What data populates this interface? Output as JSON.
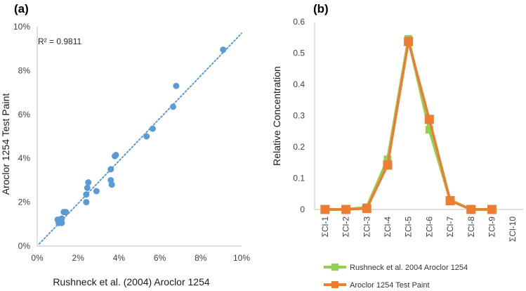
{
  "chart_data": [
    {
      "type": "scatter",
      "panel_label": "(a)",
      "xlabel": "Rushneck et al. (2004) Aroclor 1254",
      "ylabel": "Aroclor 1254 Test Paint",
      "xlim": [
        0,
        10
      ],
      "ylim": [
        0,
        10
      ],
      "x_ticks": [
        "0%",
        "2%",
        "4%",
        "6%",
        "8%",
        "10%"
      ],
      "y_ticks": [
        "0%",
        "2%",
        "4%",
        "6%",
        "8%",
        "10%"
      ],
      "annotation": "R² = 0.9811",
      "grid": false,
      "trendline": {
        "style": "dotted",
        "from": [
          0.1,
          0.1
        ],
        "to": [
          10,
          9.7
        ]
      },
      "colors": {
        "points": "#5b9bd5",
        "trendline": "#5b9bd5"
      },
      "points": [
        {
          "x": 1.0,
          "y": 1.2
        },
        {
          "x": 1.05,
          "y": 1.05
        },
        {
          "x": 1.1,
          "y": 1.2
        },
        {
          "x": 1.2,
          "y": 1.25
        },
        {
          "x": 1.2,
          "y": 1.05
        },
        {
          "x": 1.3,
          "y": 1.55
        },
        {
          "x": 1.4,
          "y": 1.55
        },
        {
          "x": 2.4,
          "y": 2.0
        },
        {
          "x": 2.4,
          "y": 2.35
        },
        {
          "x": 2.45,
          "y": 2.65
        },
        {
          "x": 2.5,
          "y": 2.9
        },
        {
          "x": 2.9,
          "y": 2.5
        },
        {
          "x": 3.6,
          "y": 3.5
        },
        {
          "x": 3.6,
          "y": 3.0
        },
        {
          "x": 3.65,
          "y": 2.8
        },
        {
          "x": 3.8,
          "y": 4.1
        },
        {
          "x": 3.85,
          "y": 4.15
        },
        {
          "x": 5.35,
          "y": 5.0
        },
        {
          "x": 5.65,
          "y": 5.35
        },
        {
          "x": 6.65,
          "y": 6.35
        },
        {
          "x": 6.8,
          "y": 7.3
        },
        {
          "x": 9.1,
          "y": 8.95
        }
      ]
    },
    {
      "type": "line",
      "panel_label": "(b)",
      "ylabel": "Relative Concentration",
      "xlabel": "",
      "ylim": [
        0,
        0.6
      ],
      "y_ticks": [
        "0",
        "0.1",
        "0.2",
        "0.3",
        "0.4",
        "0.5",
        "0.6"
      ],
      "categories": [
        "ΣCl-1",
        "ΣCl-2",
        "ΣCl-3",
        "ΣCl-4",
        "ΣCl-5",
        "ΣCl-6",
        "ΣCl-7",
        "ΣCl-8",
        "ΣCl-9",
        "ΣCl-10"
      ],
      "grid": false,
      "legend_position": "bottom",
      "series": [
        {
          "name": "Rushneck et al. 2004 Aroclor 1254",
          "color": "#92d050",
          "values": [
            0.0,
            0.0,
            0.007,
            0.16,
            0.545,
            0.255,
            0.03,
            0.0,
            0.0,
            null
          ]
        },
        {
          "name": "Aroclor 1254 Test Paint",
          "color": "#ed7d31",
          "values": [
            0.0,
            0.0,
            0.003,
            0.142,
            0.537,
            0.288,
            0.028,
            0.0,
            0.0,
            null
          ]
        }
      ]
    }
  ]
}
